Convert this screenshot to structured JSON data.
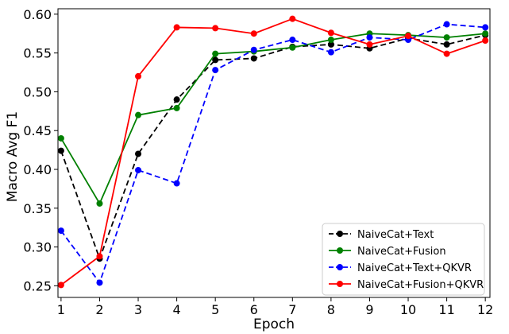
{
  "chart_data": {
    "type": "line",
    "xlabel": "Epoch",
    "ylabel": "Macro Avg F1",
    "x": [
      1,
      2,
      3,
      4,
      5,
      6,
      7,
      8,
      9,
      10,
      11,
      12
    ],
    "xlim": [
      0.92,
      12.12
    ],
    "ylim": [
      0.235,
      0.607
    ],
    "xticks": [
      1,
      2,
      3,
      4,
      5,
      6,
      7,
      8,
      9,
      10,
      11,
      12
    ],
    "yticks": [
      0.25,
      0.3,
      0.35,
      0.4,
      0.45,
      0.5,
      0.55,
      0.6
    ],
    "ytick_labels": [
      "0.25",
      "0.30",
      "0.35",
      "0.40",
      "0.45",
      "0.50",
      "0.55",
      "0.60"
    ],
    "grid": false,
    "legend_position": "lower-right",
    "series": [
      {
        "name": "NaiveCat+Text",
        "color": "#000000",
        "linestyle": "dashed",
        "values": [
          0.424,
          0.285,
          0.42,
          0.49,
          0.541,
          0.543,
          0.558,
          0.561,
          0.556,
          0.569,
          0.561,
          0.573
        ]
      },
      {
        "name": "NaiveCat+Fusion",
        "color": "#008000",
        "linestyle": "solid",
        "values": [
          0.44,
          0.356,
          0.47,
          0.479,
          0.549,
          0.552,
          0.557,
          0.567,
          0.575,
          0.573,
          0.57,
          0.575
        ]
      },
      {
        "name": "NaiveCat+Text+QKVR",
        "color": "#0000ff",
        "linestyle": "dashed",
        "values": [
          0.321,
          0.254,
          0.399,
          0.382,
          0.528,
          0.554,
          0.567,
          0.551,
          0.57,
          0.567,
          0.587,
          0.583
        ]
      },
      {
        "name": "NaiveCat+Fusion+QKVR",
        "color": "#ff0000",
        "linestyle": "solid",
        "values": [
          0.251,
          0.288,
          0.52,
          0.583,
          0.582,
          0.575,
          0.594,
          0.576,
          0.561,
          0.572,
          0.549,
          0.566
        ]
      }
    ]
  }
}
